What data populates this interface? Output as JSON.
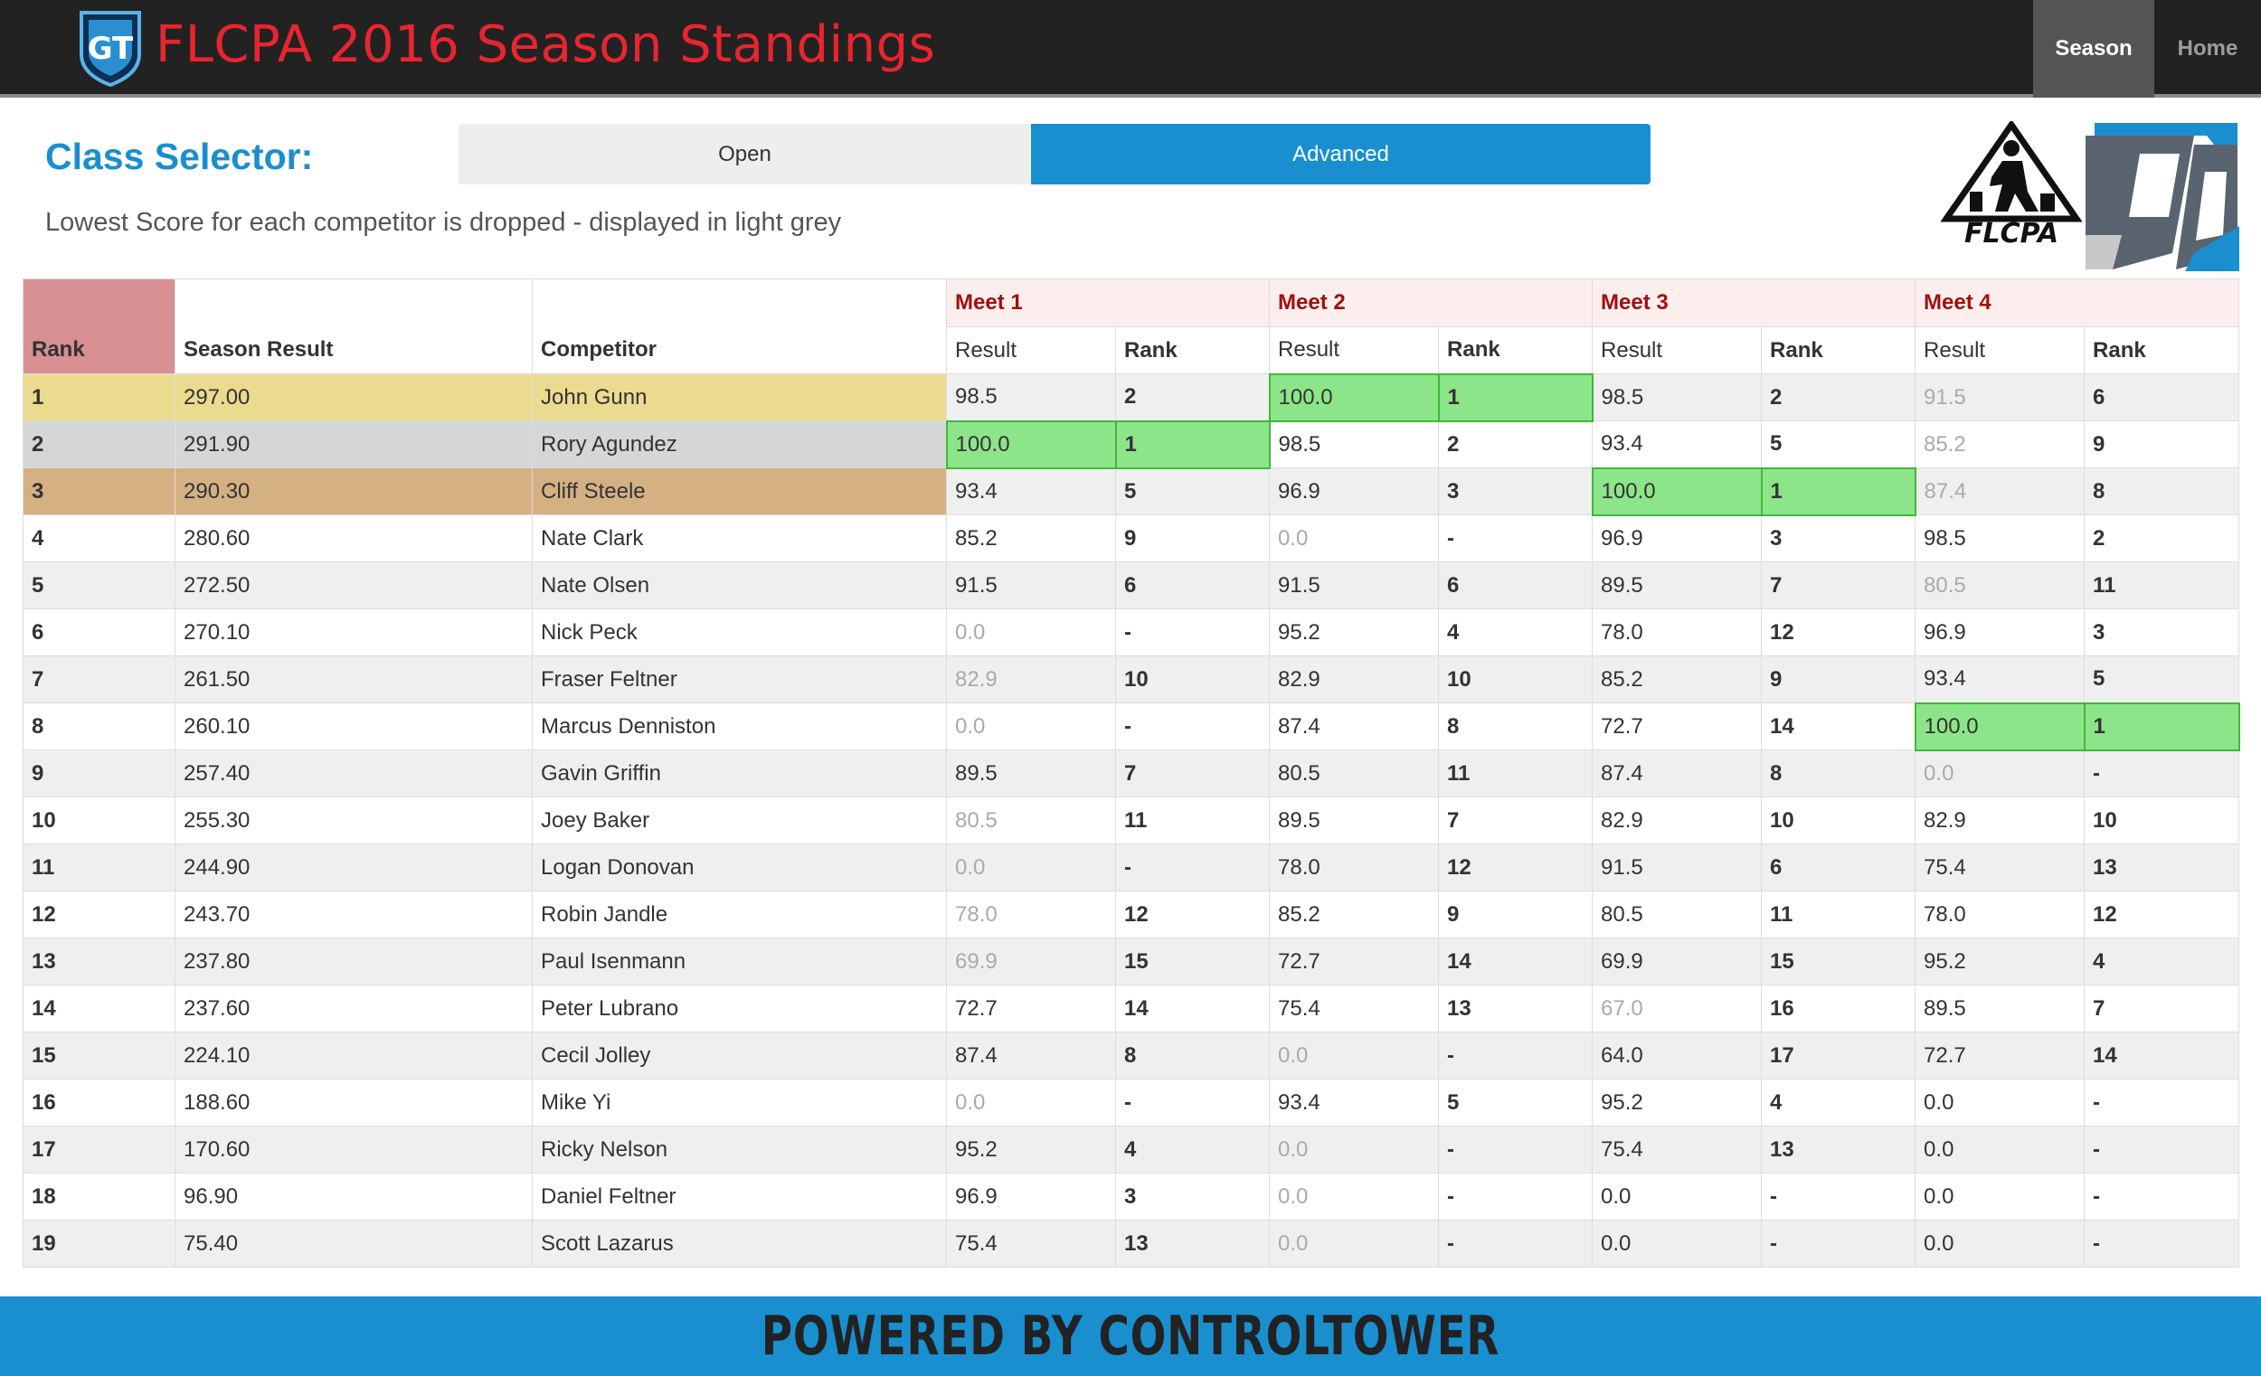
{
  "header": {
    "title": "FLCPA 2016 Season Standings",
    "logo_text": "GT",
    "nav": [
      {
        "label": "Season",
        "active": true
      },
      {
        "label": "Home",
        "active": false
      }
    ]
  },
  "class_selector": {
    "label": "Class Selector:",
    "options": [
      {
        "label": "Open",
        "selected": false
      },
      {
        "label": "Advanced",
        "selected": true
      }
    ],
    "note": "Lowest Score for each competitor is dropped - displayed in light grey"
  },
  "sponsors": {
    "flcpa_text": "FLCPA"
  },
  "colors": {
    "accent": "#1a8fcf",
    "brand_red": "#e8252f",
    "winner_green": "#8de58a",
    "gold": "#ebdb8f",
    "silver": "#d6d6d6",
    "bronze": "#d4b083",
    "rank_header": "#d88f94"
  },
  "table": {
    "headers": {
      "rank": "Rank",
      "season_result": "Season Result",
      "competitor": "Competitor",
      "meets": [
        "Meet 1",
        "Meet 2",
        "Meet 3",
        "Meet 4"
      ],
      "sub_result": "Result",
      "sub_rank": "Rank"
    },
    "rows": [
      {
        "rank": "1",
        "season": "297.00",
        "name": "John Gunn",
        "meets": [
          [
            "98.5",
            "2"
          ],
          [
            "100.0",
            "1"
          ],
          [
            "98.5",
            "2"
          ],
          [
            "91.5",
            "6"
          ]
        ],
        "dropped": 3,
        "podium": "gold"
      },
      {
        "rank": "2",
        "season": "291.90",
        "name": "Rory Agundez",
        "meets": [
          [
            "100.0",
            "1"
          ],
          [
            "98.5",
            "2"
          ],
          [
            "93.4",
            "5"
          ],
          [
            "85.2",
            "9"
          ]
        ],
        "dropped": 3,
        "podium": "silver"
      },
      {
        "rank": "3",
        "season": "290.30",
        "name": "Cliff Steele",
        "meets": [
          [
            "93.4",
            "5"
          ],
          [
            "96.9",
            "3"
          ],
          [
            "100.0",
            "1"
          ],
          [
            "87.4",
            "8"
          ]
        ],
        "dropped": 3,
        "podium": "bronze"
      },
      {
        "rank": "4",
        "season": "280.60",
        "name": "Nate Clark",
        "meets": [
          [
            "85.2",
            "9"
          ],
          [
            "0.0",
            "-"
          ],
          [
            "96.9",
            "3"
          ],
          [
            "98.5",
            "2"
          ]
        ],
        "dropped": 1
      },
      {
        "rank": "5",
        "season": "272.50",
        "name": "Nate Olsen",
        "meets": [
          [
            "91.5",
            "6"
          ],
          [
            "91.5",
            "6"
          ],
          [
            "89.5",
            "7"
          ],
          [
            "80.5",
            "11"
          ]
        ],
        "dropped": 3
      },
      {
        "rank": "6",
        "season": "270.10",
        "name": "Nick Peck",
        "meets": [
          [
            "0.0",
            "-"
          ],
          [
            "95.2",
            "4"
          ],
          [
            "78.0",
            "12"
          ],
          [
            "96.9",
            "3"
          ]
        ],
        "dropped": 0
      },
      {
        "rank": "7",
        "season": "261.50",
        "name": "Fraser Feltner",
        "meets": [
          [
            "82.9",
            "10"
          ],
          [
            "82.9",
            "10"
          ],
          [
            "85.2",
            "9"
          ],
          [
            "93.4",
            "5"
          ]
        ],
        "dropped": 0
      },
      {
        "rank": "8",
        "season": "260.10",
        "name": "Marcus Denniston",
        "meets": [
          [
            "0.0",
            "-"
          ],
          [
            "87.4",
            "8"
          ],
          [
            "72.7",
            "14"
          ],
          [
            "100.0",
            "1"
          ]
        ],
        "dropped": 0
      },
      {
        "rank": "9",
        "season": "257.40",
        "name": "Gavin Griffin",
        "meets": [
          [
            "89.5",
            "7"
          ],
          [
            "80.5",
            "11"
          ],
          [
            "87.4",
            "8"
          ],
          [
            "0.0",
            "-"
          ]
        ],
        "dropped": 3
      },
      {
        "rank": "10",
        "season": "255.30",
        "name": "Joey Baker",
        "meets": [
          [
            "80.5",
            "11"
          ],
          [
            "89.5",
            "7"
          ],
          [
            "82.9",
            "10"
          ],
          [
            "82.9",
            "10"
          ]
        ],
        "dropped": 0
      },
      {
        "rank": "11",
        "season": "244.90",
        "name": "Logan Donovan",
        "meets": [
          [
            "0.0",
            "-"
          ],
          [
            "78.0",
            "12"
          ],
          [
            "91.5",
            "6"
          ],
          [
            "75.4",
            "13"
          ]
        ],
        "dropped": 0
      },
      {
        "rank": "12",
        "season": "243.70",
        "name": "Robin Jandle",
        "meets": [
          [
            "78.0",
            "12"
          ],
          [
            "85.2",
            "9"
          ],
          [
            "80.5",
            "11"
          ],
          [
            "78.0",
            "12"
          ]
        ],
        "dropped": 0
      },
      {
        "rank": "13",
        "season": "237.80",
        "name": "Paul Isenmann",
        "meets": [
          [
            "69.9",
            "15"
          ],
          [
            "72.7",
            "14"
          ],
          [
            "69.9",
            "15"
          ],
          [
            "95.2",
            "4"
          ]
        ],
        "dropped": 0
      },
      {
        "rank": "14",
        "season": "237.60",
        "name": "Peter Lubrano",
        "meets": [
          [
            "72.7",
            "14"
          ],
          [
            "75.4",
            "13"
          ],
          [
            "67.0",
            "16"
          ],
          [
            "89.5",
            "7"
          ]
        ],
        "dropped": 2
      },
      {
        "rank": "15",
        "season": "224.10",
        "name": "Cecil Jolley",
        "meets": [
          [
            "87.4",
            "8"
          ],
          [
            "0.0",
            "-"
          ],
          [
            "64.0",
            "17"
          ],
          [
            "72.7",
            "14"
          ]
        ],
        "dropped": 1
      },
      {
        "rank": "16",
        "season": "188.60",
        "name": "Mike Yi",
        "meets": [
          [
            "0.0",
            "-"
          ],
          [
            "93.4",
            "5"
          ],
          [
            "95.2",
            "4"
          ],
          [
            "0.0",
            "-"
          ]
        ],
        "dropped": 0
      },
      {
        "rank": "17",
        "season": "170.60",
        "name": "Ricky Nelson",
        "meets": [
          [
            "95.2",
            "4"
          ],
          [
            "0.0",
            "-"
          ],
          [
            "75.4",
            "13"
          ],
          [
            "0.0",
            "-"
          ]
        ],
        "dropped": 1
      },
      {
        "rank": "18",
        "season": "96.90",
        "name": "Daniel Feltner",
        "meets": [
          [
            "96.9",
            "3"
          ],
          [
            "0.0",
            "-"
          ],
          [
            "0.0",
            "-"
          ],
          [
            "0.0",
            "-"
          ]
        ],
        "dropped": 1
      },
      {
        "rank": "19",
        "season": "75.40",
        "name": "Scott Lazarus",
        "meets": [
          [
            "75.4",
            "13"
          ],
          [
            "0.0",
            "-"
          ],
          [
            "0.0",
            "-"
          ],
          [
            "0.0",
            "-"
          ]
        ],
        "dropped": 1
      }
    ]
  },
  "footer": {
    "text": "POWERED BY CONTROLTOWER"
  }
}
